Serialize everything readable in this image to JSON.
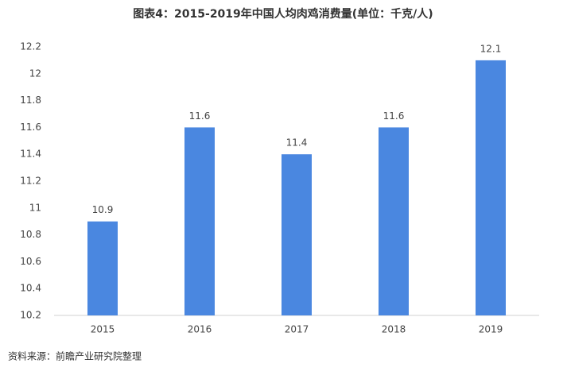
{
  "chart_data": {
    "type": "bar",
    "title": "图表4：2015-2019年中国人均肉鸡消费量(单位：千克/人)",
    "categories": [
      "2015",
      "2016",
      "2017",
      "2018",
      "2019"
    ],
    "values": [
      10.9,
      11.6,
      11.4,
      11.6,
      12.1
    ],
    "color": "#4a87e0",
    "ylim": [
      10.2,
      12.2
    ],
    "yticks": [
      10.2,
      10.4,
      10.6,
      10.8,
      11,
      11.2,
      11.4,
      11.6,
      11.8,
      12,
      12.2
    ],
    "grid": false,
    "source": "资料来源：前瞻产业研究院整理"
  }
}
